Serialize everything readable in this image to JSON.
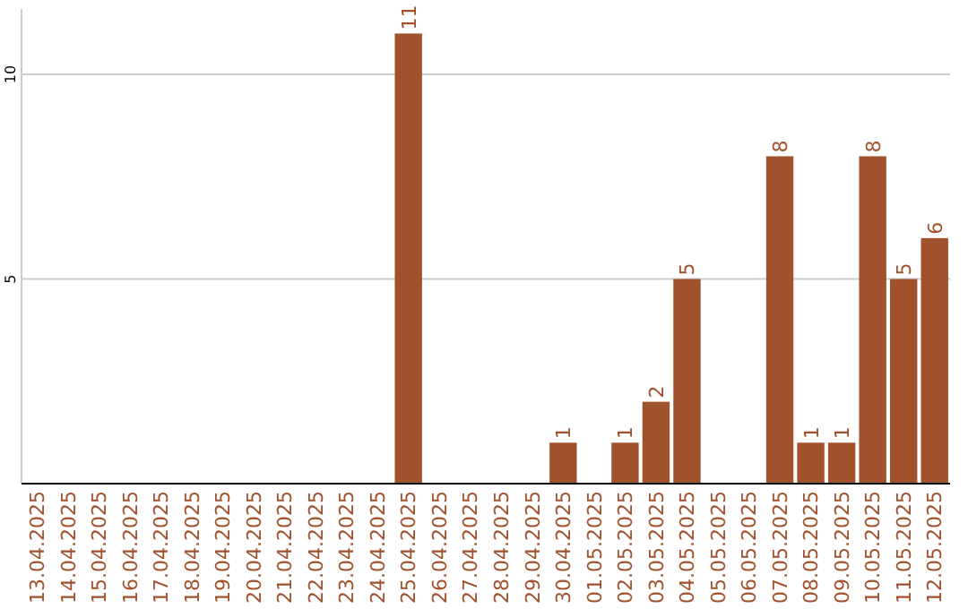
{
  "chart_data": {
    "type": "bar",
    "categories": [
      "13.04.2025",
      "14.04.2025",
      "15.04.2025",
      "16.04.2025",
      "17.04.2025",
      "18.04.2025",
      "19.04.2025",
      "20.04.2025",
      "21.04.2025",
      "22.04.2025",
      "23.04.2025",
      "24.04.2025",
      "25.04.2025",
      "26.04.2025",
      "27.04.2025",
      "28.04.2025",
      "29.04.2025",
      "30.04.2025",
      "01.05.2025",
      "02.05.2025",
      "03.05.2025",
      "04.05.2025",
      "05.05.2025",
      "06.05.2025",
      "07.05.2025",
      "08.05.2025",
      "09.05.2025",
      "10.05.2025",
      "11.05.2025",
      "12.05.2025"
    ],
    "values": [
      0,
      0,
      0,
      0,
      0,
      0,
      0,
      0,
      0,
      0,
      0,
      0,
      11,
      0,
      0,
      0,
      0,
      1,
      0,
      1,
      2,
      5,
      0,
      0,
      8,
      1,
      1,
      8,
      5,
      6
    ],
    "value_labels": [
      null,
      null,
      null,
      null,
      null,
      null,
      null,
      null,
      null,
      null,
      null,
      null,
      "11",
      null,
      null,
      null,
      null,
      "1",
      null,
      "1",
      "2",
      "5",
      null,
      null,
      "8",
      "1",
      "1",
      "8",
      "5",
      "6"
    ],
    "color": "#a0522d",
    "ylim": [
      0,
      11.6
    ],
    "yticks": [
      5,
      10
    ],
    "grid": "y"
  }
}
